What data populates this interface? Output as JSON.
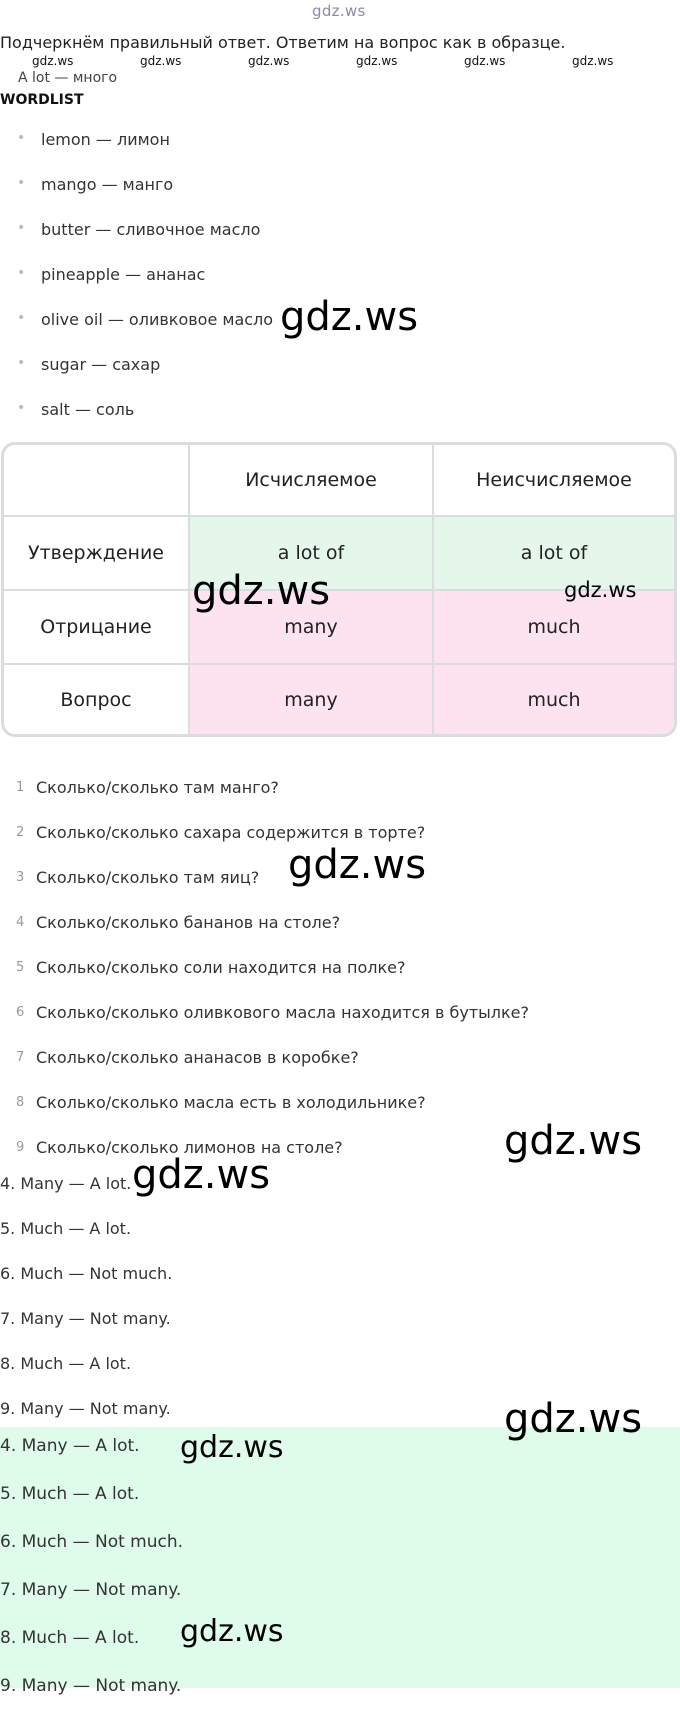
{
  "header": {
    "logo": "gdz.ws"
  },
  "intro": "Подчеркнём правильный ответ. Ответим на вопрос как в образце.",
  "mini_watermarks": [
    "gdz.ws",
    "gdz.ws",
    "gdz.ws",
    "gdz.ws",
    "gdz.ws",
    "gdz.ws"
  ],
  "partial_item": "A lot — много",
  "wordlist": {
    "heading": "WORDLIST",
    "items": [
      "lemon — лимон",
      "mango — манго",
      "butter — сливочное масло",
      "pineapple — ананас",
      "olive oil — оливковое масло",
      "sugar — сахар",
      "salt — соль"
    ]
  },
  "table": {
    "headers": [
      "",
      "Исчисляемое",
      "Неисчисляемое"
    ],
    "rows": [
      {
        "label": "Утверждение",
        "countable": "a lot of",
        "uncountable": "a lot of"
      },
      {
        "label": "Отрицание",
        "countable": "many",
        "uncountable": "much"
      },
      {
        "label": "Вопрос",
        "countable": "many",
        "uncountable": "much"
      }
    ]
  },
  "questions": [
    {
      "num": "1",
      "text": "Сколько/сколько там манго?"
    },
    {
      "num": "2",
      "text": "Сколько/сколько сахара содержится в торте?"
    },
    {
      "num": "3",
      "text": "Сколько/сколько там яиц?"
    },
    {
      "num": "4",
      "text": "Сколько/сколько бананов на столе?"
    },
    {
      "num": "5",
      "text": "Сколько/сколько соли находится на полке?"
    },
    {
      "num": "6",
      "text": "Сколько/сколько оливкового масла находится в бутылке?"
    },
    {
      "num": "7",
      "text": "Сколько/сколько ананасов в коробке?"
    },
    {
      "num": "8",
      "text": "Сколько/сколько масла есть в холодильнике?"
    },
    {
      "num": "9",
      "text": "Сколько/сколько лимонов на столе?"
    }
  ],
  "answers": [
    "4. Many — A lot.",
    "5. Much — A lot.",
    "6. Much — Not much.",
    "7. Many — Not many.",
    "8. Much — A lot.",
    "9. Many — Not many."
  ],
  "answers_highlighted": [
    "4. Many — A lot.",
    "5. Much — A lot.",
    "6. Much — Not much.",
    "7. Many — Not many.",
    "8. Much — A lot.",
    "9. Many — Not many."
  ],
  "watermark": "gdz.ws",
  "colors": {
    "green_row": "#e4f7ea",
    "pink_row": "#fde3f0",
    "answer_box": "#dffbea",
    "border": "#d9dde0"
  }
}
